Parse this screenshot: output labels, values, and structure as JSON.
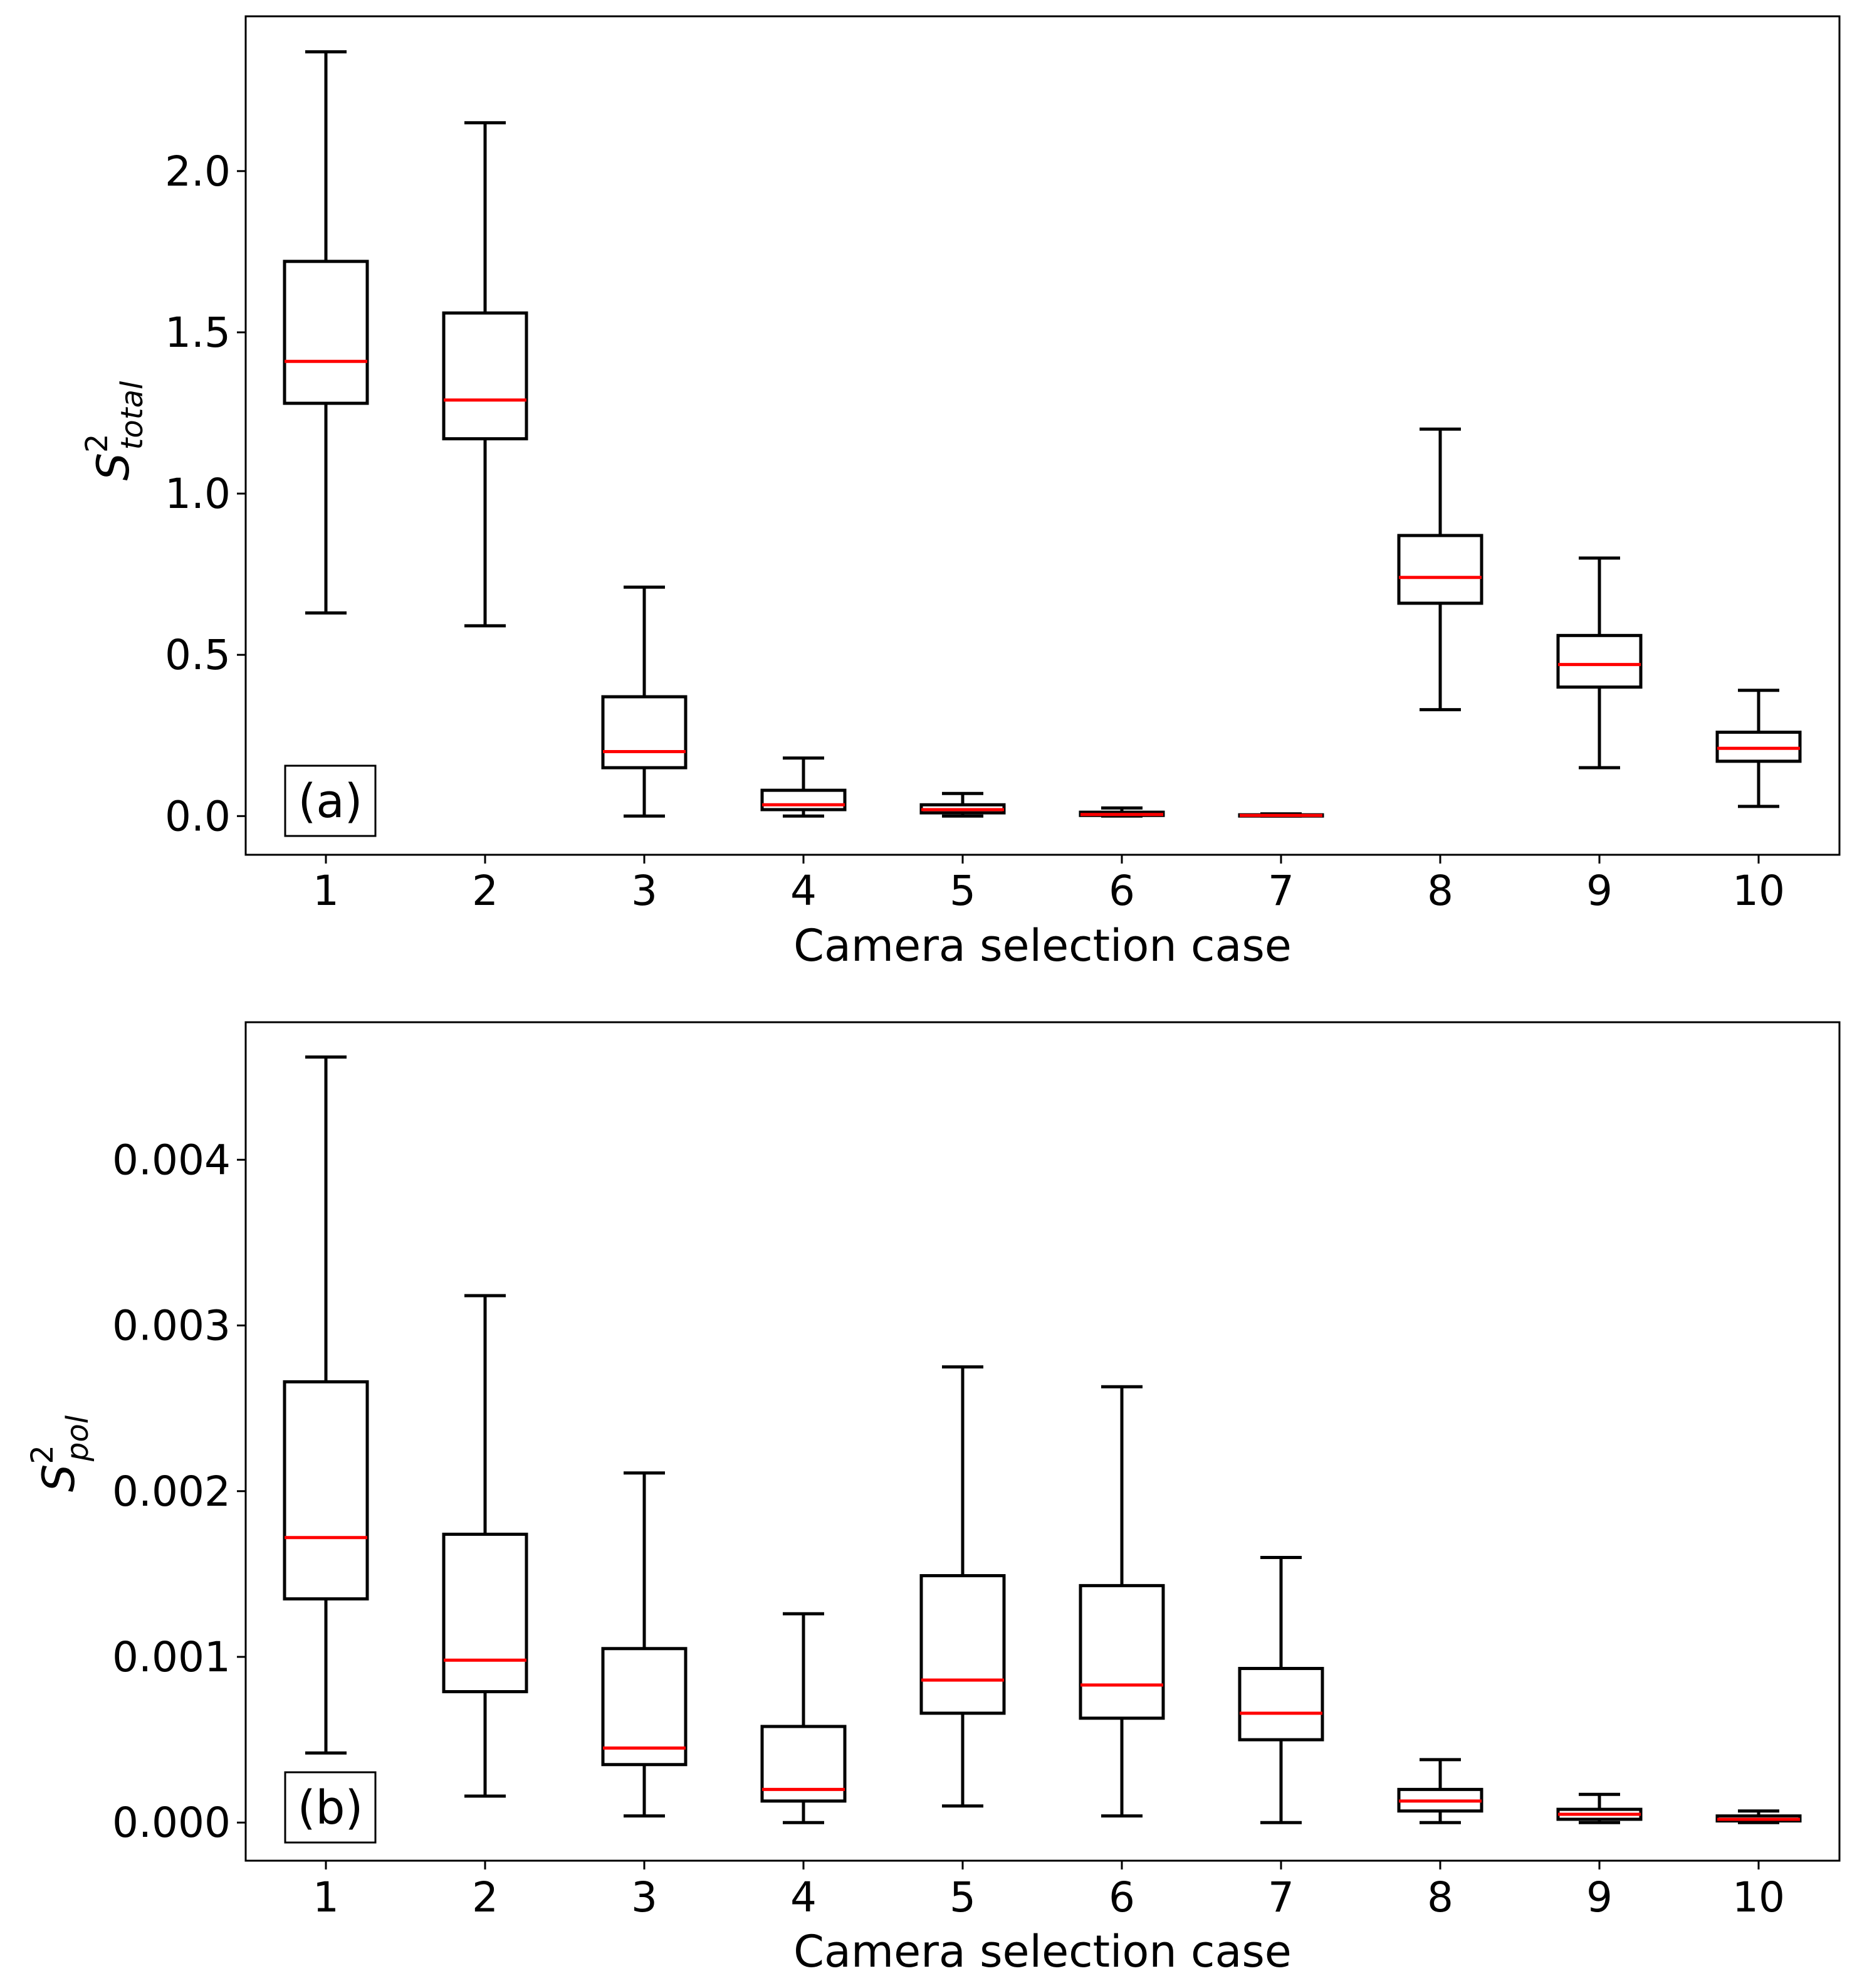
{
  "colors": {
    "median": "#ff0000",
    "box": "#000000",
    "background": "#ffffff"
  },
  "chart_data": [
    {
      "type": "boxplot",
      "panel_label": "(a)",
      "xlabel": "Camera selection case",
      "ylabel": {
        "base": "S",
        "sup": "2",
        "sub": "total"
      },
      "ylim": [
        -0.12,
        2.48
      ],
      "yticks": [
        0.0,
        0.5,
        1.0,
        1.5,
        2.0
      ],
      "ytick_labels": [
        "0.0",
        "0.5",
        "1.0",
        "1.5",
        "2.0"
      ],
      "categories": [
        "1",
        "2",
        "3",
        "4",
        "5",
        "6",
        "7",
        "8",
        "9",
        "10"
      ],
      "boxes": [
        {
          "whislo": 0.63,
          "q1": 1.28,
          "med": 1.41,
          "q3": 1.72,
          "whishi": 2.37
        },
        {
          "whislo": 0.59,
          "q1": 1.17,
          "med": 1.29,
          "q3": 1.56,
          "whishi": 2.15
        },
        {
          "whislo": 0.0,
          "q1": 0.15,
          "med": 0.2,
          "q3": 0.37,
          "whishi": 0.71
        },
        {
          "whislo": 0.0,
          "q1": 0.02,
          "med": 0.035,
          "q3": 0.08,
          "whishi": 0.18
        },
        {
          "whislo": 0.0,
          "q1": 0.01,
          "med": 0.02,
          "q3": 0.035,
          "whishi": 0.07
        },
        {
          "whislo": 0.0,
          "q1": 0.002,
          "med": 0.005,
          "q3": 0.012,
          "whishi": 0.025
        },
        {
          "whislo": 0.0,
          "q1": 0.001,
          "med": 0.002,
          "q3": 0.004,
          "whishi": 0.007
        },
        {
          "whislo": 0.33,
          "q1": 0.66,
          "med": 0.74,
          "q3": 0.87,
          "whishi": 1.2
        },
        {
          "whislo": 0.15,
          "q1": 0.4,
          "med": 0.47,
          "q3": 0.56,
          "whishi": 0.8
        },
        {
          "whislo": 0.03,
          "q1": 0.17,
          "med": 0.21,
          "q3": 0.26,
          "whishi": 0.39
        }
      ]
    },
    {
      "type": "boxplot",
      "panel_label": "(b)",
      "xlabel": "Camera selection case",
      "ylabel": {
        "base": "S",
        "sup": "2",
        "sub": "pol"
      },
      "ylim": [
        -0.00023,
        0.00483
      ],
      "yticks": [
        0.0,
        0.001,
        0.002,
        0.003,
        0.004
      ],
      "ytick_labels": [
        "0.000",
        "0.001",
        "0.002",
        "0.003",
        "0.004"
      ],
      "categories": [
        "1",
        "2",
        "3",
        "4",
        "5",
        "6",
        "7",
        "8",
        "9",
        "10"
      ],
      "boxes": [
        {
          "whislo": 0.00042,
          "q1": 0.00135,
          "med": 0.00172,
          "q3": 0.00266,
          "whishi": 0.00462
        },
        {
          "whislo": 0.00016,
          "q1": 0.00079,
          "med": 0.00098,
          "q3": 0.00174,
          "whishi": 0.00318
        },
        {
          "whislo": 4e-05,
          "q1": 0.00035,
          "med": 0.00045,
          "q3": 0.00105,
          "whishi": 0.00211
        },
        {
          "whislo": 0.0,
          "q1": 0.00013,
          "med": 0.0002,
          "q3": 0.00058,
          "whishi": 0.00126
        },
        {
          "whislo": 0.0001,
          "q1": 0.00066,
          "med": 0.00086,
          "q3": 0.00149,
          "whishi": 0.00275
        },
        {
          "whislo": 4e-05,
          "q1": 0.00063,
          "med": 0.00083,
          "q3": 0.00143,
          "whishi": 0.00263
        },
        {
          "whislo": 0.0,
          "q1": 0.0005,
          "med": 0.00066,
          "q3": 0.00093,
          "whishi": 0.0016
        },
        {
          "whislo": 0.0,
          "q1": 7e-05,
          "med": 0.00013,
          "q3": 0.0002,
          "whishi": 0.00038
        },
        {
          "whislo": 0.0,
          "q1": 2e-05,
          "med": 5e-05,
          "q3": 8e-05,
          "whishi": 0.00017
        },
        {
          "whislo": 0.0,
          "q1": 1e-05,
          "med": 2e-05,
          "q3": 4e-05,
          "whishi": 7e-05
        }
      ]
    }
  ]
}
